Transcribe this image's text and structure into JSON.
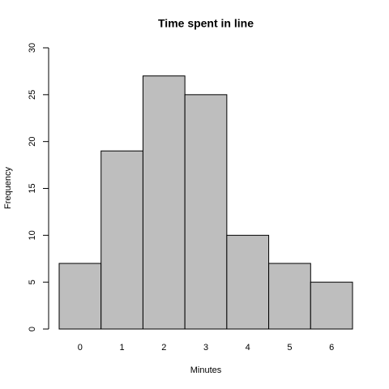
{
  "chart_data": {
    "type": "bar",
    "title": "Time spent in line",
    "x_label": "Minutes",
    "y_label": "Frequency",
    "categories": [
      "0",
      "1",
      "2",
      "3",
      "4",
      "5",
      "6"
    ],
    "values": [
      7,
      19,
      27,
      25,
      10,
      7,
      5
    ],
    "color": "#bebebe",
    "ylim": [
      0,
      30
    ],
    "yticks": [
      0,
      5,
      10,
      15,
      20,
      25,
      30
    ],
    "grid": false
  }
}
